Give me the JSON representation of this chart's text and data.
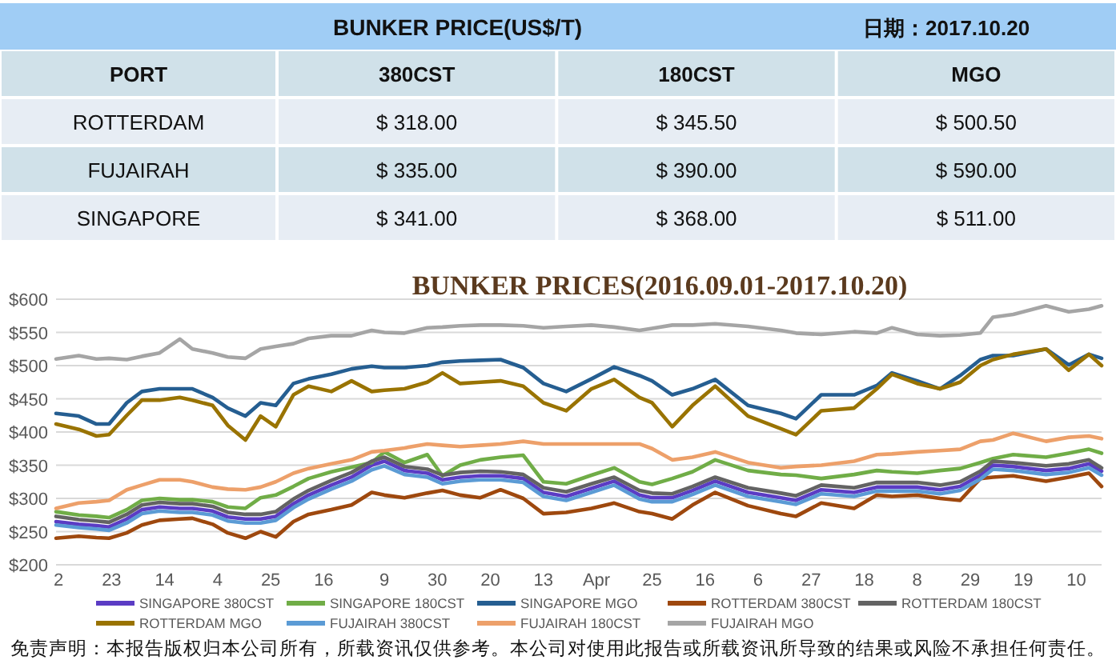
{
  "chart_data": [
    {
      "type": "other",
      "title": "BUNKER PRICE(US$/T)",
      "subtitle": "日期：2017.10.20",
      "xlabel": "PORT",
      "categories": [
        "ROTTERDAM",
        "FUJAIRAH",
        "SINGAPORE"
      ],
      "series": [
        {
          "name": "380CST",
          "colors": [
            "#e7edf4",
            "#d0e1e9",
            "#e7edf4"
          ],
          "values": [
            318,
            335,
            341
          ],
          "value_labels": [
            "$ 318.00",
            "$ 335.00",
            "$ 341.00"
          ]
        },
        {
          "name": "180CST",
          "colors": [
            "#e7edf4",
            "#d0e1e9",
            "#e7edf4"
          ],
          "values": [
            345.5,
            390,
            368
          ],
          "value_labels": [
            "$ 345.50",
            "$ 390.00",
            "$ 368.00"
          ]
        },
        {
          "name": "MGO",
          "colors": [
            "#e7edf4",
            "#d0e1e9",
            "#e7edf4"
          ],
          "values": [
            500.5,
            590,
            511
          ],
          "value_labels": [
            "$ 500.50",
            "$ 590.00",
            "$ 511.00"
          ]
        }
      ]
    },
    {
      "type": "line",
      "title": "BUNKER PRICES(2016.09.01-2017.10.20)",
      "x": [
        "2016-09-01",
        "2016-09-10",
        "2016-09-17",
        "2016-09-22",
        "2016-09-29",
        "2016-10-05",
        "2016-10-12",
        "2016-10-20",
        "2016-10-25",
        "2016-11-02",
        "2016-11-08",
        "2016-11-15",
        "2016-11-21",
        "2016-11-27",
        "2016-12-04",
        "2016-12-10",
        "2016-12-19",
        "2016-12-27",
        "2017-01-04",
        "2017-01-09",
        "2017-01-17",
        "2017-01-26",
        "2017-02-01",
        "2017-02-08",
        "2017-02-16",
        "2017-02-24",
        "2017-03-05",
        "2017-03-13",
        "2017-03-22",
        "2017-04-01",
        "2017-04-10",
        "2017-04-20",
        "2017-04-25",
        "2017-05-03",
        "2017-05-11",
        "2017-05-20",
        "2017-06-02",
        "2017-06-15",
        "2017-06-21",
        "2017-07-01",
        "2017-07-14",
        "2017-07-23",
        "2017-07-29",
        "2017-08-08",
        "2017-08-17",
        "2017-08-25",
        "2017-09-02",
        "2017-09-07",
        "2017-09-15",
        "2017-09-28",
        "2017-10-07",
        "2017-10-15",
        "2017-10-20"
      ],
      "xlim": [
        "2016-09-01",
        "2017-10-20"
      ],
      "xticks": [
        {
          "value": "2016-09-02",
          "label": "2"
        },
        {
          "value": "2016-09-23",
          "label": "23"
        },
        {
          "value": "2016-10-14",
          "label": "14"
        },
        {
          "value": "2016-11-04",
          "label": "4"
        },
        {
          "value": "2016-11-25",
          "label": "25"
        },
        {
          "value": "2016-12-16",
          "label": "16"
        },
        {
          "value": "2017-01-09",
          "label": "9"
        },
        {
          "value": "2017-01-30",
          "label": "30"
        },
        {
          "value": "2017-02-20",
          "label": "20"
        },
        {
          "value": "2017-03-13",
          "label": "13"
        },
        {
          "value": "2017-04-03",
          "label": "Apr"
        },
        {
          "value": "2017-04-25",
          "label": "25"
        },
        {
          "value": "2017-05-16",
          "label": "16"
        },
        {
          "value": "2017-06-06",
          "label": "6"
        },
        {
          "value": "2017-06-27",
          "label": "27"
        },
        {
          "value": "2017-07-18",
          "label": "18"
        },
        {
          "value": "2017-08-08",
          "label": "8"
        },
        {
          "value": "2017-08-29",
          "label": "29"
        },
        {
          "value": "2017-09-19",
          "label": "19"
        },
        {
          "value": "2017-10-10",
          "label": "10"
        }
      ],
      "ylim": [
        200,
        600
      ],
      "yticks": [
        {
          "value": 200,
          "label": "$200"
        },
        {
          "value": 250,
          "label": "$250"
        },
        {
          "value": 300,
          "label": "$300"
        },
        {
          "value": 350,
          "label": "$350"
        },
        {
          "value": 400,
          "label": "$400"
        },
        {
          "value": 450,
          "label": "$450"
        },
        {
          "value": 500,
          "label": "$500"
        },
        {
          "value": 550,
          "label": "$550"
        },
        {
          "value": 600,
          "label": "$600"
        }
      ],
      "grid": "y",
      "legend": "bottom",
      "line_style": "solid",
      "series": [
        {
          "name": "SINGAPORE 380CST",
          "color": "#5b3cc4",
          "values": [
            265,
            261,
            259,
            257,
            269,
            283,
            287,
            285,
            285,
            281,
            272,
            269,
            269,
            273,
            292,
            305,
            320,
            332,
            350,
            356,
            342,
            338,
            328,
            332,
            334,
            334,
            330,
            309,
            303,
            315,
            326,
            305,
            301,
            301,
            312,
            326,
            309,
            301,
            297,
            313,
            309,
            317,
            317,
            317,
            313,
            318,
            335,
            350,
            348,
            342,
            345,
            352,
            341
          ]
        },
        {
          "name": "SINGAPORE 180CST",
          "color": "#70ad47",
          "values": [
            280,
            275,
            273,
            271,
            283,
            297,
            300,
            298,
            298,
            295,
            287,
            285,
            301,
            305,
            318,
            330,
            340,
            347,
            354,
            370,
            354,
            366,
            334,
            350,
            358,
            362,
            365,
            325,
            322,
            335,
            346,
            325,
            321,
            330,
            340,
            358,
            342,
            336,
            335,
            330,
            336,
            342,
            340,
            338,
            342,
            345,
            354,
            360,
            366,
            362,
            368,
            374,
            368
          ]
        },
        {
          "name": "SINGAPORE MGO",
          "color": "#255e91",
          "values": [
            428,
            424,
            412,
            412,
            444,
            461,
            465,
            465,
            465,
            452,
            436,
            424,
            444,
            440,
            473,
            480,
            487,
            495,
            499,
            497,
            497,
            500,
            505,
            507,
            508,
            509,
            497,
            473,
            461,
            480,
            498,
            485,
            477,
            456,
            465,
            479,
            440,
            428,
            420,
            456,
            456,
            470,
            489,
            477,
            465,
            485,
            509,
            515,
            515,
            525,
            501,
            517,
            511
          ]
        },
        {
          "name": "ROTTERDAM 380CST",
          "color": "#9e480e",
          "values": [
            240,
            243,
            241,
            240,
            248,
            260,
            267,
            269,
            270,
            261,
            248,
            240,
            250,
            242,
            265,
            276,
            283,
            290,
            309,
            305,
            301,
            308,
            312,
            305,
            301,
            313,
            300,
            277,
            279,
            285,
            293,
            280,
            277,
            269,
            290,
            309,
            289,
            277,
            273,
            293,
            285,
            305,
            303,
            305,
            300,
            297,
            330,
            332,
            334,
            326,
            332,
            338,
            318
          ]
        },
        {
          "name": "ROTTERDAM 180CST",
          "color": "#636363",
          "values": [
            273,
            268,
            266,
            264,
            276,
            290,
            294,
            292,
            292,
            288,
            279,
            276,
            276,
            280,
            299,
            312,
            327,
            339,
            356,
            362,
            348,
            344,
            335,
            339,
            341,
            340,
            336,
            316,
            310,
            322,
            332,
            312,
            308,
            307,
            318,
            332,
            316,
            308,
            304,
            320,
            316,
            324,
            324,
            324,
            320,
            325,
            341,
            356,
            354,
            349,
            352,
            358,
            346
          ]
        },
        {
          "name": "ROTTERDAM MGO",
          "color": "#997300",
          "values": [
            412,
            404,
            394,
            396,
            425,
            448,
            448,
            452,
            448,
            440,
            410,
            388,
            424,
            408,
            456,
            469,
            461,
            477,
            461,
            463,
            465,
            475,
            489,
            473,
            475,
            477,
            469,
            444,
            432,
            465,
            479,
            452,
            444,
            408,
            440,
            469,
            424,
            405,
            396,
            432,
            436,
            465,
            487,
            473,
            465,
            475,
            500,
            509,
            517,
            525,
            493,
            517,
            500
          ]
        },
        {
          "name": "FUJAIRAH 380CST",
          "color": "#5b9bd5",
          "values": [
            260,
            256,
            254,
            252,
            263,
            277,
            281,
            279,
            279,
            275,
            266,
            263,
            263,
            267,
            286,
            299,
            314,
            326,
            343,
            349,
            336,
            332,
            322,
            326,
            328,
            328,
            324,
            303,
            297,
            309,
            320,
            299,
            295,
            295,
            306,
            320,
            303,
            295,
            291,
            307,
            303,
            311,
            311,
            311,
            307,
            312,
            329,
            344,
            342,
            336,
            339,
            346,
            335
          ]
        },
        {
          "name": "FUJAIRAH 180CST",
          "color": "#eda06a",
          "values": [
            285,
            293,
            295,
            297,
            313,
            320,
            328,
            328,
            325,
            317,
            314,
            313,
            317,
            325,
            338,
            345,
            352,
            358,
            370,
            372,
            376,
            382,
            380,
            378,
            380,
            382,
            386,
            382,
            382,
            382,
            382,
            382,
            375,
            358,
            362,
            370,
            354,
            346,
            348,
            350,
            356,
            366,
            367,
            370,
            372,
            374,
            386,
            388,
            398,
            386,
            392,
            394,
            390
          ]
        },
        {
          "name": "FUJAIRAH MGO",
          "color": "#a5a5a5",
          "values": [
            510,
            515,
            510,
            511,
            509,
            514,
            519,
            540,
            525,
            519,
            513,
            511,
            525,
            529,
            533,
            541,
            545,
            545,
            553,
            550,
            549,
            557,
            558,
            560,
            561,
            561,
            560,
            557,
            559,
            561,
            558,
            553,
            556,
            561,
            561,
            563,
            559,
            553,
            549,
            547,
            551,
            549,
            557,
            547,
            545,
            546,
            549,
            573,
            577,
            590,
            581,
            585,
            590
          ]
        }
      ],
      "annotations": [
        "免责声明：本报告版权归本公司所有，所载资讯仅供参考。本公司对使用此报告或所载资讯所导致的结果或风险不承担任何责任。"
      ]
    }
  ]
}
